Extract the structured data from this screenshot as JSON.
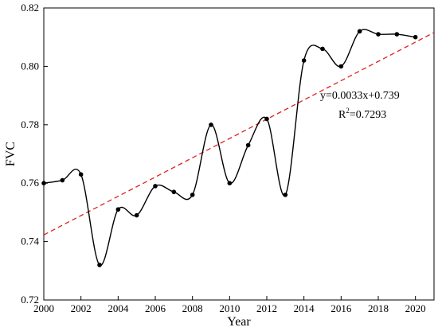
{
  "chart_data": {
    "type": "line",
    "title": "",
    "xlabel": "Year",
    "ylabel": "FVC",
    "xlim": [
      2000,
      2021
    ],
    "ylim": [
      0.72,
      0.82
    ],
    "x_ticks": [
      2000,
      2002,
      2004,
      2006,
      2008,
      2010,
      2012,
      2014,
      2016,
      2018,
      2020
    ],
    "x_tick_labels": [
      "2000",
      "2002",
      "2004",
      "2006",
      "2008",
      "2010",
      "2012",
      "2014",
      "2016",
      "2018",
      "2020"
    ],
    "y_ticks": [
      0.72,
      0.74,
      0.76,
      0.78,
      0.8,
      0.82
    ],
    "y_tick_labels": [
      "0.72",
      "0.74",
      "0.76",
      "0.78",
      "0.80",
      "0.82"
    ],
    "grid": false,
    "series": [
      {
        "style": "smooth-line-with-markers",
        "color": "#000000",
        "x": [
          2000,
          2001,
          2002,
          2003,
          2004,
          2005,
          2006,
          2007,
          2008,
          2009,
          2010,
          2011,
          2012,
          2013,
          2014,
          2015,
          2016,
          2017,
          2018,
          2019,
          2020
        ],
        "y": [
          0.76,
          0.761,
          0.763,
          0.732,
          0.751,
          0.749,
          0.759,
          0.757,
          0.756,
          0.78,
          0.76,
          0.773,
          0.782,
          0.756,
          0.802,
          0.806,
          0.8,
          0.812,
          0.811,
          0.811,
          0.81
        ]
      },
      {
        "style": "dashed-trendline",
        "color": "#e02020",
        "slope": 0.0033,
        "intercept": 0.739
      }
    ],
    "annotations": {
      "equation": "y=0.0033x+0.739",
      "r2_prefix": "R",
      "r2_sup": "2",
      "r2_value": "=0.7293"
    }
  }
}
